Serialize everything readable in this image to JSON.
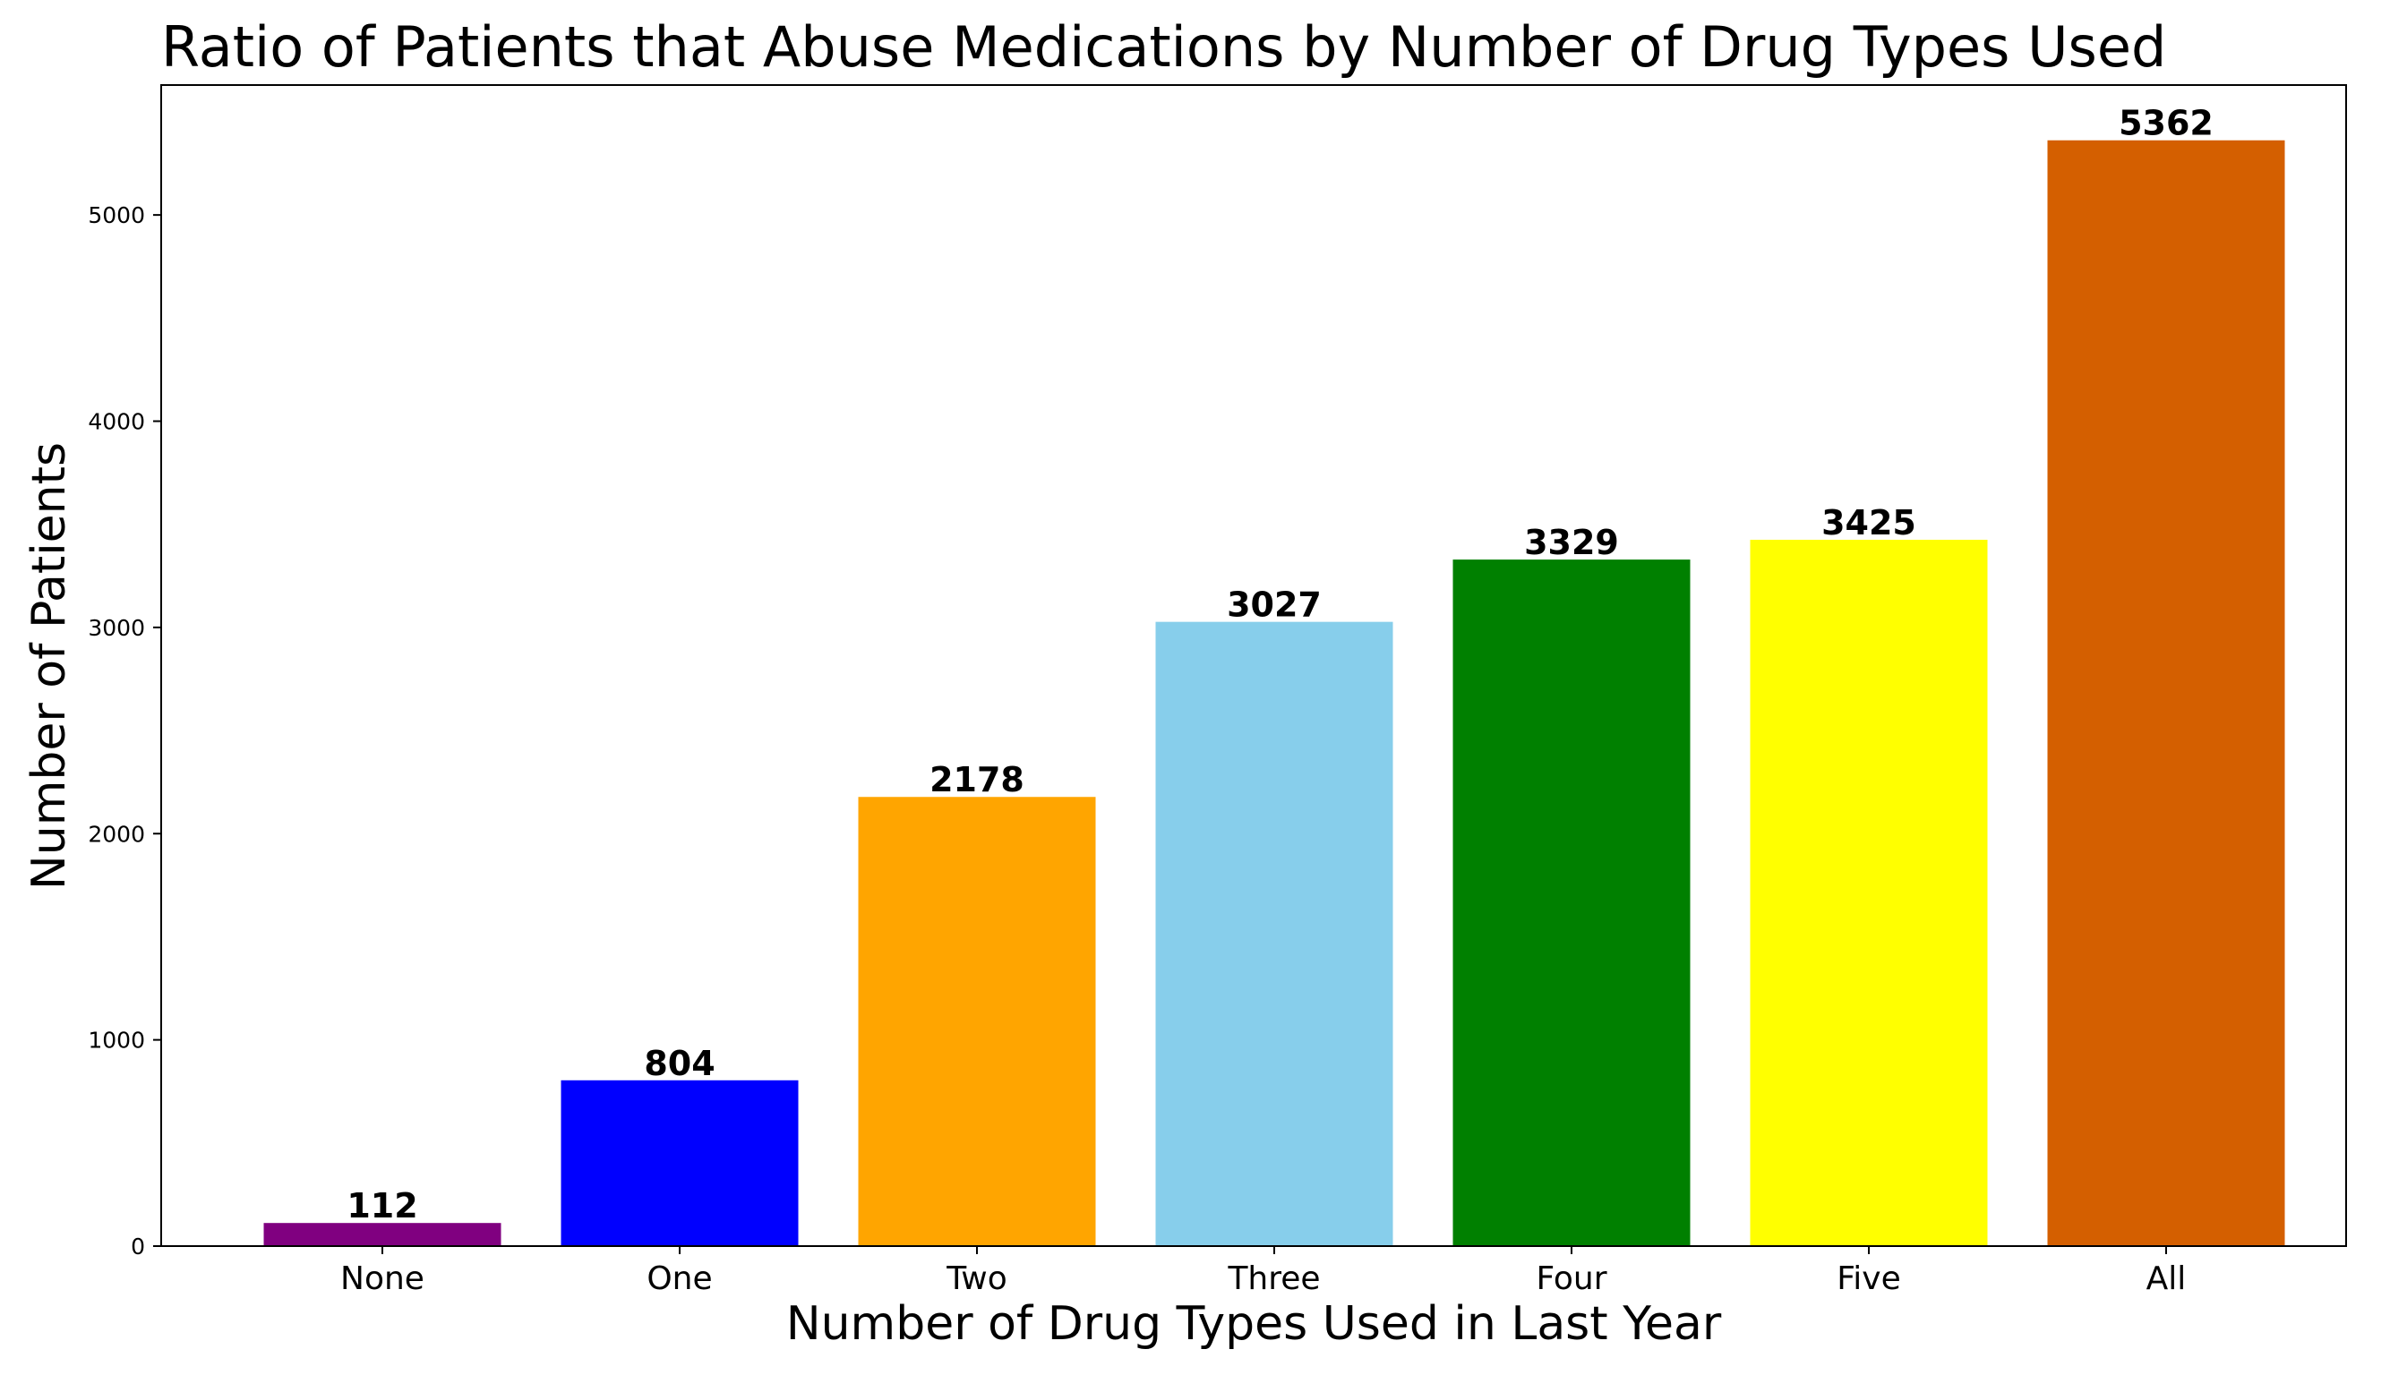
{
  "chart_data": {
    "type": "bar",
    "title": "Ratio of Patients that Abuse Medications by Number of Drug Types Used",
    "xlabel": "Number of Drug Types Used in Last Year",
    "ylabel": "Number of Patients",
    "categories": [
      "None",
      "One",
      "Two",
      "Three",
      "Four",
      "Five",
      "All"
    ],
    "values": [
      112,
      804,
      2178,
      3027,
      3329,
      3425,
      5362
    ],
    "data_labels": [
      "112",
      "804",
      "2178",
      "3027",
      "3329",
      "3425",
      "5362"
    ],
    "colors": [
      "#800080",
      "#0000ff",
      "#ffa500",
      "#87ceeb",
      "#008000",
      "#ffff00",
      "#d45f00"
    ],
    "ylim": [
      0,
      5630
    ],
    "yticks": [
      0,
      1000,
      2000,
      3000,
      4000,
      5000
    ],
    "ytick_labels": [
      "0",
      "1000",
      "2000",
      "3000",
      "4000",
      "5000"
    ],
    "grid": false,
    "legend": false
  }
}
